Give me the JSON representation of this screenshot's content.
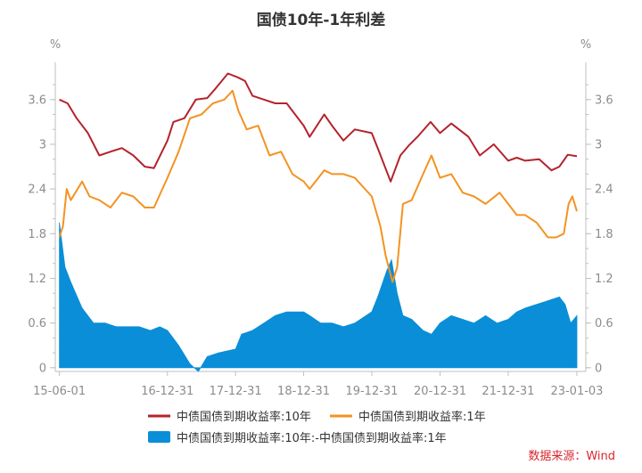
{
  "chart_data": {
    "type": "line+area",
    "title": "国债10年-1年利差",
    "left_unit": "%",
    "right_unit": "%",
    "x_tick_labels": [
      "15-06-01",
      "16-12-31",
      "17-12-31",
      "18-12-31",
      "19-12-31",
      "20-12-31",
      "21-12-31",
      "23-01-03"
    ],
    "x_tick_dates": [
      "2015-06-01",
      "2016-12-31",
      "2017-12-31",
      "2018-12-31",
      "2019-12-31",
      "2020-12-31",
      "2021-12-31",
      "2023-01-03"
    ],
    "y_ticks": [
      "0",
      "0.6",
      "1.2",
      "1.8",
      "2.4",
      "3",
      "3.6"
    ],
    "ylim": [
      -0.05,
      4.1
    ],
    "grid": false,
    "legend_position": "bottom",
    "series": [
      {
        "name": "中债国债到期收益率:10年",
        "kind": "line",
        "color": "#b5222d",
        "points": [
          [
            "2015-06-01",
            3.6
          ],
          [
            "2015-07-15",
            3.55
          ],
          [
            "2015-09-01",
            3.35
          ],
          [
            "2015-11-01",
            3.15
          ],
          [
            "2016-01-01",
            2.85
          ],
          [
            "2016-03-01",
            2.9
          ],
          [
            "2016-05-01",
            2.95
          ],
          [
            "2016-07-01",
            2.85
          ],
          [
            "2016-09-01",
            2.7
          ],
          [
            "2016-10-20",
            2.68
          ],
          [
            "2016-12-31",
            3.05
          ],
          [
            "2017-02-01",
            3.3
          ],
          [
            "2017-04-01",
            3.35
          ],
          [
            "2017-06-01",
            3.6
          ],
          [
            "2017-08-01",
            3.62
          ],
          [
            "2017-09-15",
            3.75
          ],
          [
            "2017-11-20",
            3.95
          ],
          [
            "2018-01-10",
            3.9
          ],
          [
            "2018-02-20",
            3.85
          ],
          [
            "2018-04-01",
            3.65
          ],
          [
            "2018-06-01",
            3.6
          ],
          [
            "2018-08-01",
            3.55
          ],
          [
            "2018-10-01",
            3.55
          ],
          [
            "2018-12-31",
            3.25
          ],
          [
            "2019-02-01",
            3.1
          ],
          [
            "2019-04-20",
            3.4
          ],
          [
            "2019-06-01",
            3.25
          ],
          [
            "2019-08-01",
            3.05
          ],
          [
            "2019-10-01",
            3.2
          ],
          [
            "2019-12-31",
            3.15
          ],
          [
            "2020-02-01",
            2.95
          ],
          [
            "2020-04-10",
            2.5
          ],
          [
            "2020-06-01",
            2.85
          ],
          [
            "2020-07-15",
            2.98
          ],
          [
            "2020-09-01",
            3.1
          ],
          [
            "2020-11-10",
            3.3
          ],
          [
            "2020-12-31",
            3.15
          ],
          [
            "2021-03-01",
            3.28
          ],
          [
            "2021-06-01",
            3.1
          ],
          [
            "2021-08-01",
            2.85
          ],
          [
            "2021-10-15",
            3.0
          ],
          [
            "2021-12-31",
            2.78
          ],
          [
            "2022-02-15",
            2.82
          ],
          [
            "2022-04-01",
            2.78
          ],
          [
            "2022-06-15",
            2.8
          ],
          [
            "2022-08-20",
            2.65
          ],
          [
            "2022-10-01",
            2.7
          ],
          [
            "2022-11-15",
            2.86
          ],
          [
            "2023-01-03",
            2.84
          ]
        ]
      },
      {
        "name": "中债国债到期收益率:1年",
        "kind": "line",
        "color": "#f39322",
        "points": [
          [
            "2015-06-01",
            1.75
          ],
          [
            "2015-06-20",
            1.9
          ],
          [
            "2015-07-10",
            2.4
          ],
          [
            "2015-08-01",
            2.25
          ],
          [
            "2015-10-01",
            2.5
          ],
          [
            "2015-11-10",
            2.3
          ],
          [
            "2016-01-01",
            2.25
          ],
          [
            "2016-03-01",
            2.15
          ],
          [
            "2016-05-01",
            2.35
          ],
          [
            "2016-07-01",
            2.3
          ],
          [
            "2016-09-01",
            2.15
          ],
          [
            "2016-10-20",
            2.15
          ],
          [
            "2016-12-31",
            2.55
          ],
          [
            "2017-03-01",
            2.9
          ],
          [
            "2017-05-01",
            3.35
          ],
          [
            "2017-07-01",
            3.4
          ],
          [
            "2017-09-01",
            3.55
          ],
          [
            "2017-11-01",
            3.6
          ],
          [
            "2017-12-15",
            3.72
          ],
          [
            "2018-01-15",
            3.45
          ],
          [
            "2018-03-01",
            3.2
          ],
          [
            "2018-05-01",
            3.25
          ],
          [
            "2018-07-01",
            2.85
          ],
          [
            "2018-09-01",
            2.9
          ],
          [
            "2018-11-01",
            2.6
          ],
          [
            "2018-12-31",
            2.5
          ],
          [
            "2019-02-01",
            2.4
          ],
          [
            "2019-04-20",
            2.65
          ],
          [
            "2019-06-01",
            2.6
          ],
          [
            "2019-08-01",
            2.6
          ],
          [
            "2019-10-01",
            2.55
          ],
          [
            "2019-12-31",
            2.3
          ],
          [
            "2020-02-15",
            1.9
          ],
          [
            "2020-03-15",
            1.5
          ],
          [
            "2020-04-20",
            1.15
          ],
          [
            "2020-05-15",
            1.35
          ],
          [
            "2020-06-15",
            2.2
          ],
          [
            "2020-08-01",
            2.25
          ],
          [
            "2020-10-01",
            2.6
          ],
          [
            "2020-11-15",
            2.85
          ],
          [
            "2020-12-31",
            2.55
          ],
          [
            "2021-03-01",
            2.6
          ],
          [
            "2021-05-01",
            2.35
          ],
          [
            "2021-07-01",
            2.3
          ],
          [
            "2021-09-01",
            2.2
          ],
          [
            "2021-11-15",
            2.35
          ],
          [
            "2021-12-31",
            2.2
          ],
          [
            "2022-02-15",
            2.05
          ],
          [
            "2022-04-01",
            2.05
          ],
          [
            "2022-06-01",
            1.95
          ],
          [
            "2022-08-01",
            1.75
          ],
          [
            "2022-09-15",
            1.75
          ],
          [
            "2022-10-25",
            1.8
          ],
          [
            "2022-11-20",
            2.2
          ],
          [
            "2022-12-10",
            2.3
          ],
          [
            "2023-01-03",
            2.1
          ]
        ]
      },
      {
        "name": "中债国债到期收益率:10年:-中债国债到期收益率:1年",
        "kind": "area",
        "color": "#0a8ed8",
        "points": [
          [
            "2015-06-01",
            1.95
          ],
          [
            "2015-07-01",
            1.35
          ],
          [
            "2015-08-01",
            1.15
          ],
          [
            "2015-10-01",
            0.8
          ],
          [
            "2015-12-01",
            0.6
          ],
          [
            "2016-02-01",
            0.6
          ],
          [
            "2016-04-01",
            0.55
          ],
          [
            "2016-06-01",
            0.55
          ],
          [
            "2016-08-01",
            0.55
          ],
          [
            "2016-10-01",
            0.5
          ],
          [
            "2016-11-20",
            0.55
          ],
          [
            "2016-12-31",
            0.5
          ],
          [
            "2017-03-01",
            0.3
          ],
          [
            "2017-05-01",
            0.05
          ],
          [
            "2017-06-15",
            -0.05
          ],
          [
            "2017-08-01",
            0.15
          ],
          [
            "2017-10-01",
            0.2
          ],
          [
            "2017-12-31",
            0.25
          ],
          [
            "2018-02-01",
            0.45
          ],
          [
            "2018-04-01",
            0.5
          ],
          [
            "2018-06-01",
            0.6
          ],
          [
            "2018-08-01",
            0.7
          ],
          [
            "2018-10-01",
            0.75
          ],
          [
            "2018-12-31",
            0.75
          ],
          [
            "2019-02-01",
            0.7
          ],
          [
            "2019-04-01",
            0.6
          ],
          [
            "2019-06-01",
            0.6
          ],
          [
            "2019-08-01",
            0.55
          ],
          [
            "2019-10-01",
            0.6
          ],
          [
            "2019-12-31",
            0.75
          ],
          [
            "2020-02-01",
            0.95
          ],
          [
            "2020-03-20",
            1.3
          ],
          [
            "2020-04-15",
            1.45
          ],
          [
            "2020-05-15",
            1.0
          ],
          [
            "2020-06-15",
            0.7
          ],
          [
            "2020-08-01",
            0.65
          ],
          [
            "2020-10-01",
            0.5
          ],
          [
            "2020-11-15",
            0.45
          ],
          [
            "2020-12-31",
            0.6
          ],
          [
            "2021-03-01",
            0.7
          ],
          [
            "2021-05-01",
            0.65
          ],
          [
            "2021-07-01",
            0.6
          ],
          [
            "2021-09-01",
            0.7
          ],
          [
            "2021-11-01",
            0.6
          ],
          [
            "2021-12-31",
            0.65
          ],
          [
            "2022-02-15",
            0.75
          ],
          [
            "2022-04-01",
            0.8
          ],
          [
            "2022-06-01",
            0.85
          ],
          [
            "2022-08-01",
            0.9
          ],
          [
            "2022-10-01",
            0.95
          ],
          [
            "2022-11-01",
            0.85
          ],
          [
            "2022-12-01",
            0.6
          ],
          [
            "2023-01-03",
            0.7
          ]
        ]
      }
    ]
  },
  "source": "数据来源：Wind"
}
